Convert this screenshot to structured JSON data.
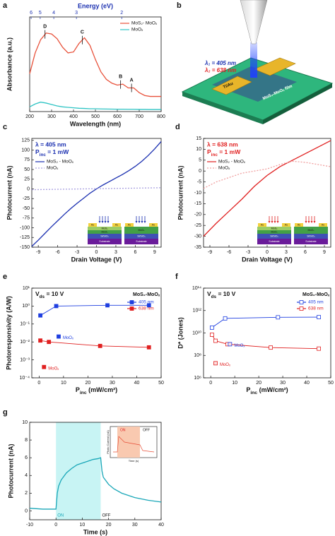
{
  "chart_data": [
    {
      "panel": "a",
      "type": "line",
      "x_label": "Wavelength (nm)",
      "y_label": "Absorbance (a.u.)",
      "x2_label": "Energy (eV)",
      "xlim": [
        200,
        800
      ],
      "xticks": [
        200,
        300,
        400,
        500,
        600,
        700,
        800
      ],
      "x2ticks": [
        6,
        5,
        4,
        3,
        2
      ],
      "ylim": [
        0,
        1
      ],
      "legend": "upper right",
      "series": [
        {
          "name": "MoS₂- MoOₓ",
          "color": "#e8513a",
          "x": [
            200,
            225,
            250,
            275,
            300,
            325,
            350,
            375,
            400,
            425,
            450,
            475,
            500,
            525,
            550,
            575,
            600,
            625,
            650,
            675,
            700,
            725,
            750,
            775,
            800
          ],
          "values": [
            0.4,
            0.62,
            0.76,
            0.83,
            0.82,
            0.77,
            0.68,
            0.62,
            0.63,
            0.72,
            0.78,
            0.7,
            0.55,
            0.42,
            0.34,
            0.3,
            0.28,
            0.29,
            0.25,
            0.25,
            0.2,
            0.17,
            0.16,
            0.16,
            0.16
          ]
        },
        {
          "name": "MoOₓ",
          "color": "#2ec4c4",
          "x": [
            200,
            225,
            250,
            275,
            300,
            325,
            350,
            375,
            400,
            425,
            450,
            475,
            500,
            525,
            550,
            575,
            600,
            625,
            650,
            675,
            700,
            725,
            750,
            775,
            800
          ],
          "values": [
            0.05,
            0.08,
            0.1,
            0.09,
            0.075,
            0.06,
            0.05,
            0.045,
            0.04,
            0.035,
            0.033,
            0.03,
            0.03,
            0.028,
            0.027,
            0.026,
            0.025,
            0.025,
            0.024,
            0.024,
            0.023,
            0.023,
            0.022,
            0.022,
            0.022
          ]
        }
      ],
      "annotations": [
        {
          "text": "D",
          "x": 270
        },
        {
          "text": "C",
          "x": 440
        },
        {
          "text": "B",
          "x": 615
        },
        {
          "text": "A",
          "x": 665
        }
      ]
    },
    {
      "panel": "c",
      "type": "line",
      "x_label": "Drain Voltage (V)",
      "y_label": "Photocurrent (nA)",
      "xlim": [
        -10,
        10
      ],
      "xticks": [
        -9,
        -6,
        -3,
        0,
        3,
        6,
        9
      ],
      "ylim": [
        -150,
        130
      ],
      "yticks": [
        -150,
        -125,
        -100,
        -75,
        -50,
        -25,
        0,
        25,
        50,
        75,
        100,
        125
      ],
      "legend": "upper left",
      "text_color": "#1a2fb0",
      "texts": [
        "λ = 405 nm",
        [
          "P",
          {
            "sub": "inc"
          },
          " = 1 mW"
        ]
      ],
      "inset_labels": [
        "Au",
        "MoS₂",
        "MoOₓ",
        "Si/SiO₂",
        "Substrate"
      ],
      "series": [
        {
          "name": "MoS₂ - MoOₓ",
          "color": "#1a2fb0",
          "x": [
            -10,
            -9,
            -8,
            -7,
            -6,
            -5,
            -4,
            -3,
            -2,
            -1,
            0,
            1,
            2,
            3,
            4,
            5,
            6,
            7,
            8,
            9,
            10
          ],
          "values": [
            -148,
            -132,
            -115,
            -98,
            -82,
            -66,
            -51,
            -37,
            -24,
            -11,
            0,
            10,
            19,
            28,
            37,
            47,
            58,
            71,
            86,
            103,
            122
          ]
        },
        {
          "name": "MoOₓ",
          "color": "#a9a0e0",
          "dash": true,
          "x": [
            -10,
            -8,
            -6,
            -4,
            -2,
            0,
            2,
            4,
            6,
            8,
            10
          ],
          "values": [
            -2,
            -1.5,
            -1,
            -0.5,
            0,
            0.5,
            1,
            1.5,
            2,
            2.5,
            3
          ]
        }
      ]
    },
    {
      "panel": "d",
      "type": "line",
      "x_label": "Drain Voltage (V)",
      "y_label": "Photocurrent (nA)",
      "xlim": [
        -10,
        10
      ],
      "xticks": [
        -9,
        -6,
        -3,
        0,
        3,
        6,
        9
      ],
      "ylim": [
        -35,
        15
      ],
      "yticks": [
        -35,
        -30,
        -25,
        -20,
        -15,
        -10,
        -5,
        0,
        5,
        10,
        15
      ],
      "legend": "upper left",
      "text_color": "#e02020",
      "texts": [
        "λ = 638 nm",
        [
          "P",
          {
            "sub": "inc"
          },
          " = 1 mW"
        ]
      ],
      "inset_labels": [
        "Au",
        "MoS₂",
        "MoOₓ",
        "Si/SiO₂",
        "Substrate"
      ],
      "series": [
        {
          "name": "MoS₂ - MoOₓ",
          "color": "#e02020",
          "x": [
            -10,
            -8,
            -6,
            -4,
            -2,
            0,
            2,
            4,
            6,
            8,
            10
          ],
          "values": [
            -30,
            -24,
            -18.5,
            -13,
            -7,
            -2,
            2,
            5,
            8,
            11,
            14
          ]
        },
        {
          "name": "MoOₓ",
          "color": "#f0a0a0",
          "dash": true,
          "x": [
            -10,
            -8,
            -6,
            -4,
            -2,
            0,
            2,
            4,
            6,
            8,
            10
          ],
          "values": [
            -8,
            -5,
            -3,
            -1,
            0,
            1,
            3,
            4.5,
            4,
            3,
            2
          ]
        }
      ]
    },
    {
      "panel": "e",
      "type": "scatter",
      "x_label": [
        "P",
        {
          "sub": "inc"
        },
        " (mW/cm²)"
      ],
      "y_label": "Photoresponsivity (A/W)",
      "xlim": [
        -3,
        50
      ],
      "xticks": [
        0,
        10,
        20,
        30,
        40,
        50
      ],
      "log_y": true,
      "ylim": [
        0.0001,
        10
      ],
      "yticks": [
        {
          "value": 0.0001,
          "label": "10⁻⁴"
        },
        {
          "value": 0.001,
          "label": "10⁻³"
        },
        {
          "value": 0.01,
          "label": "10⁻²"
        },
        {
          "value": 0.1,
          "label": "10⁻¹"
        },
        {
          "value": 1,
          "label": "10⁰"
        },
        {
          "value": 10,
          "label": "10¹"
        }
      ],
      "legend": "upper right",
      "legend_title": "MoS₂-MoOₓ",
      "texts": [
        [
          "V",
          {
            "sub": "ds"
          },
          " = 10 V"
        ]
      ],
      "series": [
        {
          "name": "405 nm",
          "color": "#1f3fe0",
          "marker": "square",
          "x": [
            0.5,
            7,
            28,
            45
          ],
          "values": [
            0.3,
            1,
            1.1,
            1.1
          ]
        },
        {
          "name": "638 nm",
          "color": "#e02020",
          "marker": "square",
          "x": [
            0.5,
            4,
            25,
            45
          ],
          "values": [
            0.012,
            0.01,
            0.006,
            0.005
          ]
        }
      ],
      "points": [
        {
          "text": "MoOₓ",
          "x": 8,
          "y": 0.02,
          "color": "#1f3fe0"
        },
        {
          "text": "MoOₓ",
          "x": 2,
          "y": 0.0004,
          "color": "#e02020"
        }
      ]
    },
    {
      "panel": "f",
      "type": "scatter",
      "x_label": [
        "P",
        {
          "sub": "inc"
        },
        " (mW/cm²)"
      ],
      "y_label": "D* (Jones)",
      "xlim": [
        -3,
        50
      ],
      "xticks": [
        0,
        10,
        20,
        30,
        40,
        50
      ],
      "log_y": true,
      "ylim": [
        1000000,
        100000000000000
      ],
      "yticks": [
        {
          "value": 1000000,
          "label": "10⁶"
        },
        {
          "value": 100000000,
          "label": "10⁸"
        },
        {
          "value": 10000000000,
          "label": "10¹⁰"
        },
        {
          "value": 1000000000000,
          "label": "10¹²"
        },
        {
          "value": 100000000000000,
          "label": "10¹⁴"
        }
      ],
      "legend": "upper right",
      "legend_title": "MoS₂-MoOₓ",
      "texts": [
        [
          "V",
          {
            "sub": "ds"
          },
          " = 10 V"
        ]
      ],
      "series": [
        {
          "name": "405 nm",
          "color": "#1f3fe0",
          "marker": "open-square",
          "x": [
            0.5,
            6,
            28,
            45
          ],
          "values": [
            30000000000,
            200000000000,
            250000000000,
            260000000000
          ]
        },
        {
          "name": "638 nm",
          "color": "#e02020",
          "marker": "open-square",
          "x": [
            0.5,
            2,
            7,
            25,
            45
          ],
          "values": [
            7000000000,
            2000000000,
            1000000000,
            500000000,
            400000000
          ]
        }
      ],
      "points": [
        {
          "text": "MoOₓ",
          "x": 8,
          "y": 1000000000,
          "color": "#1f3fe0"
        },
        {
          "text": "MoOₓ",
          "x": 2,
          "y": 20000000,
          "color": "#e02020"
        }
      ]
    },
    {
      "panel": "g",
      "type": "line",
      "x_label": "Time (s)",
      "y_label": "Photocurrent (nA)",
      "xlim": [
        -10,
        40
      ],
      "xticks": [
        -10,
        0,
        10,
        20,
        30,
        40
      ],
      "ylim": [
        -1,
        10
      ],
      "yticks": [
        0,
        2,
        4,
        6,
        8,
        10
      ],
      "shade": [
        0,
        17
      ],
      "shade_labels": [
        "ON",
        "OFF"
      ],
      "series": [
        {
          "color": "#1aa7b8",
          "x": [
            -10,
            -5,
            0,
            0.5,
            1,
            2,
            4,
            6,
            8,
            10,
            12,
            14,
            16,
            17,
            17.5,
            18,
            20,
            22,
            25,
            30,
            35,
            40
          ],
          "values": [
            0.3,
            0.2,
            0.2,
            2.0,
            2.8,
            3.5,
            4.3,
            4.8,
            5.2,
            5.4,
            5.6,
            5.8,
            5.9,
            6.0,
            4.5,
            3.8,
            3.0,
            2.5,
            2.0,
            1.5,
            1.2,
            1.0
          ]
        }
      ],
      "inset": {
        "labels": [
          "ON",
          "OFF"
        ],
        "x_label": "Time (s)",
        "y_label": "Photo Current (nA)"
      }
    }
  ],
  "panel_b": {
    "panel": "b",
    "lambda1": "λ₁ = 405 nm",
    "lambda2": "λ₂ = 638 nm",
    "electrode": "Ti/Au",
    "film": "MoS₂-MoOₓ film"
  }
}
